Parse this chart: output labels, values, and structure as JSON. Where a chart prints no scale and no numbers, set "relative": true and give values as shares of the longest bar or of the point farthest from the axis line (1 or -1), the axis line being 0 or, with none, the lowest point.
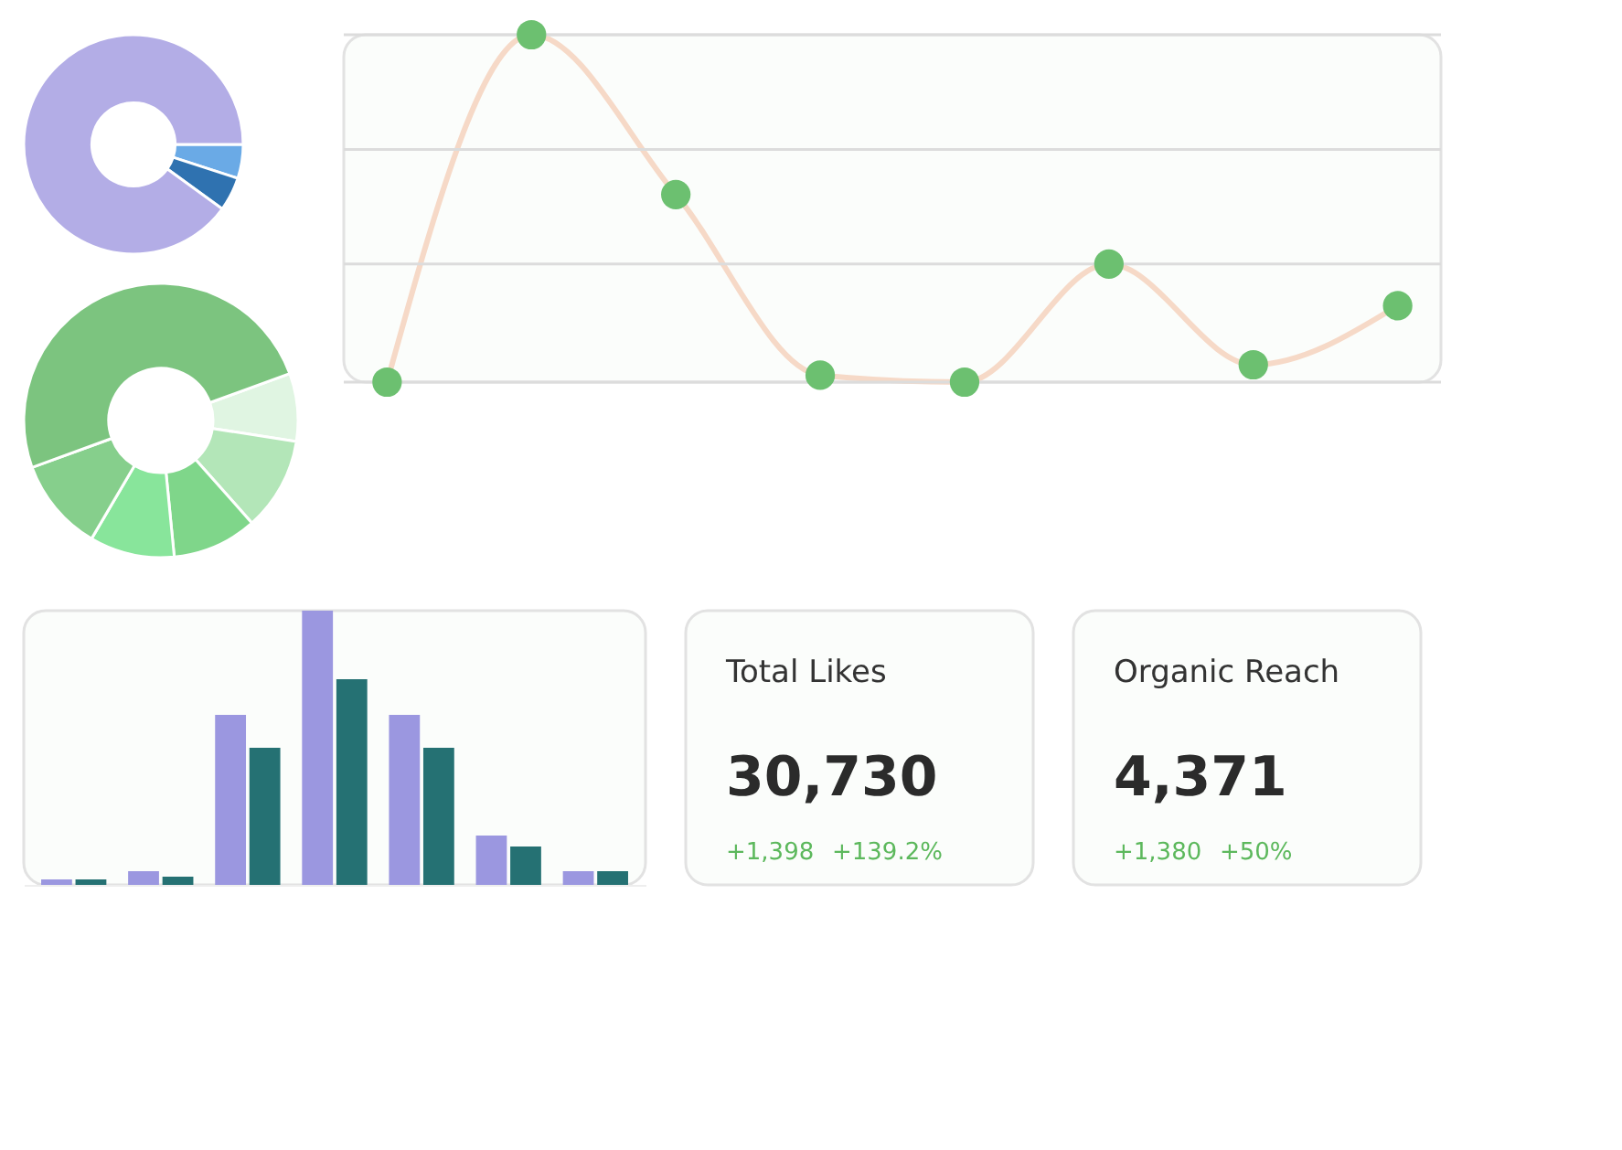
{
  "chart_data": [
    {
      "type": "donut",
      "categories": [
        null,
        null,
        null
      ],
      "values": [
        5,
        5,
        90
      ],
      "colors": [
        "#6aaae6",
        "#2f72b0",
        "#b3ade6"
      ]
    },
    {
      "type": "donut",
      "categories": [
        null,
        null,
        null,
        null,
        null,
        null
      ],
      "values": [
        8,
        11,
        10,
        10,
        11,
        50
      ],
      "colors": [
        "#e0f5e2",
        "#b3e6b8",
        "#7fd68a",
        "#88e59b",
        "#86cf8c",
        "#7cc47f"
      ]
    },
    {
      "type": "line",
      "relative": true,
      "ref_lines": [
        {
          "axis": "y",
          "value": 0,
          "color": "#dcdcdc"
        },
        {
          "axis": "y",
          "value": 0.34,
          "color": "#dcdcdc"
        },
        {
          "axis": "y",
          "value": 0.67,
          "color": "#dcdcdc"
        },
        {
          "axis": "y",
          "value": 1,
          "color": "#dcdcdc"
        }
      ],
      "marker": "circle",
      "line_style": "solid",
      "categories": [
        null,
        null,
        null,
        null,
        null,
        null,
        null,
        null
      ],
      "series": [
        {
          "color": "#f6d9c7",
          "values": [
            0,
            1,
            0.54,
            0.02,
            0,
            0.34,
            0.05,
            0.22
          ]
        }
      ]
    },
    {
      "type": "bar",
      "relative": true,
      "categories": [
        null,
        null,
        null,
        null,
        null,
        null,
        null
      ],
      "series": [
        {
          "color": "#9b97e0",
          "values": [
            0.02,
            0.05,
            0.62,
            1,
            0.62,
            0.18,
            0.05
          ]
        },
        {
          "color": "#257173",
          "values": [
            0.02,
            0.03,
            0.5,
            0.75,
            0.5,
            0.14,
            0.05
          ]
        }
      ]
    },
    {
      "type": "other",
      "title": "Total Likes",
      "annotations": [
        "30,730",
        "+1,398",
        "+139.2%"
      ]
    },
    {
      "type": "other",
      "title": "Organic Reach",
      "annotations": [
        "4,371",
        "+1,380",
        "+50%"
      ]
    }
  ]
}
